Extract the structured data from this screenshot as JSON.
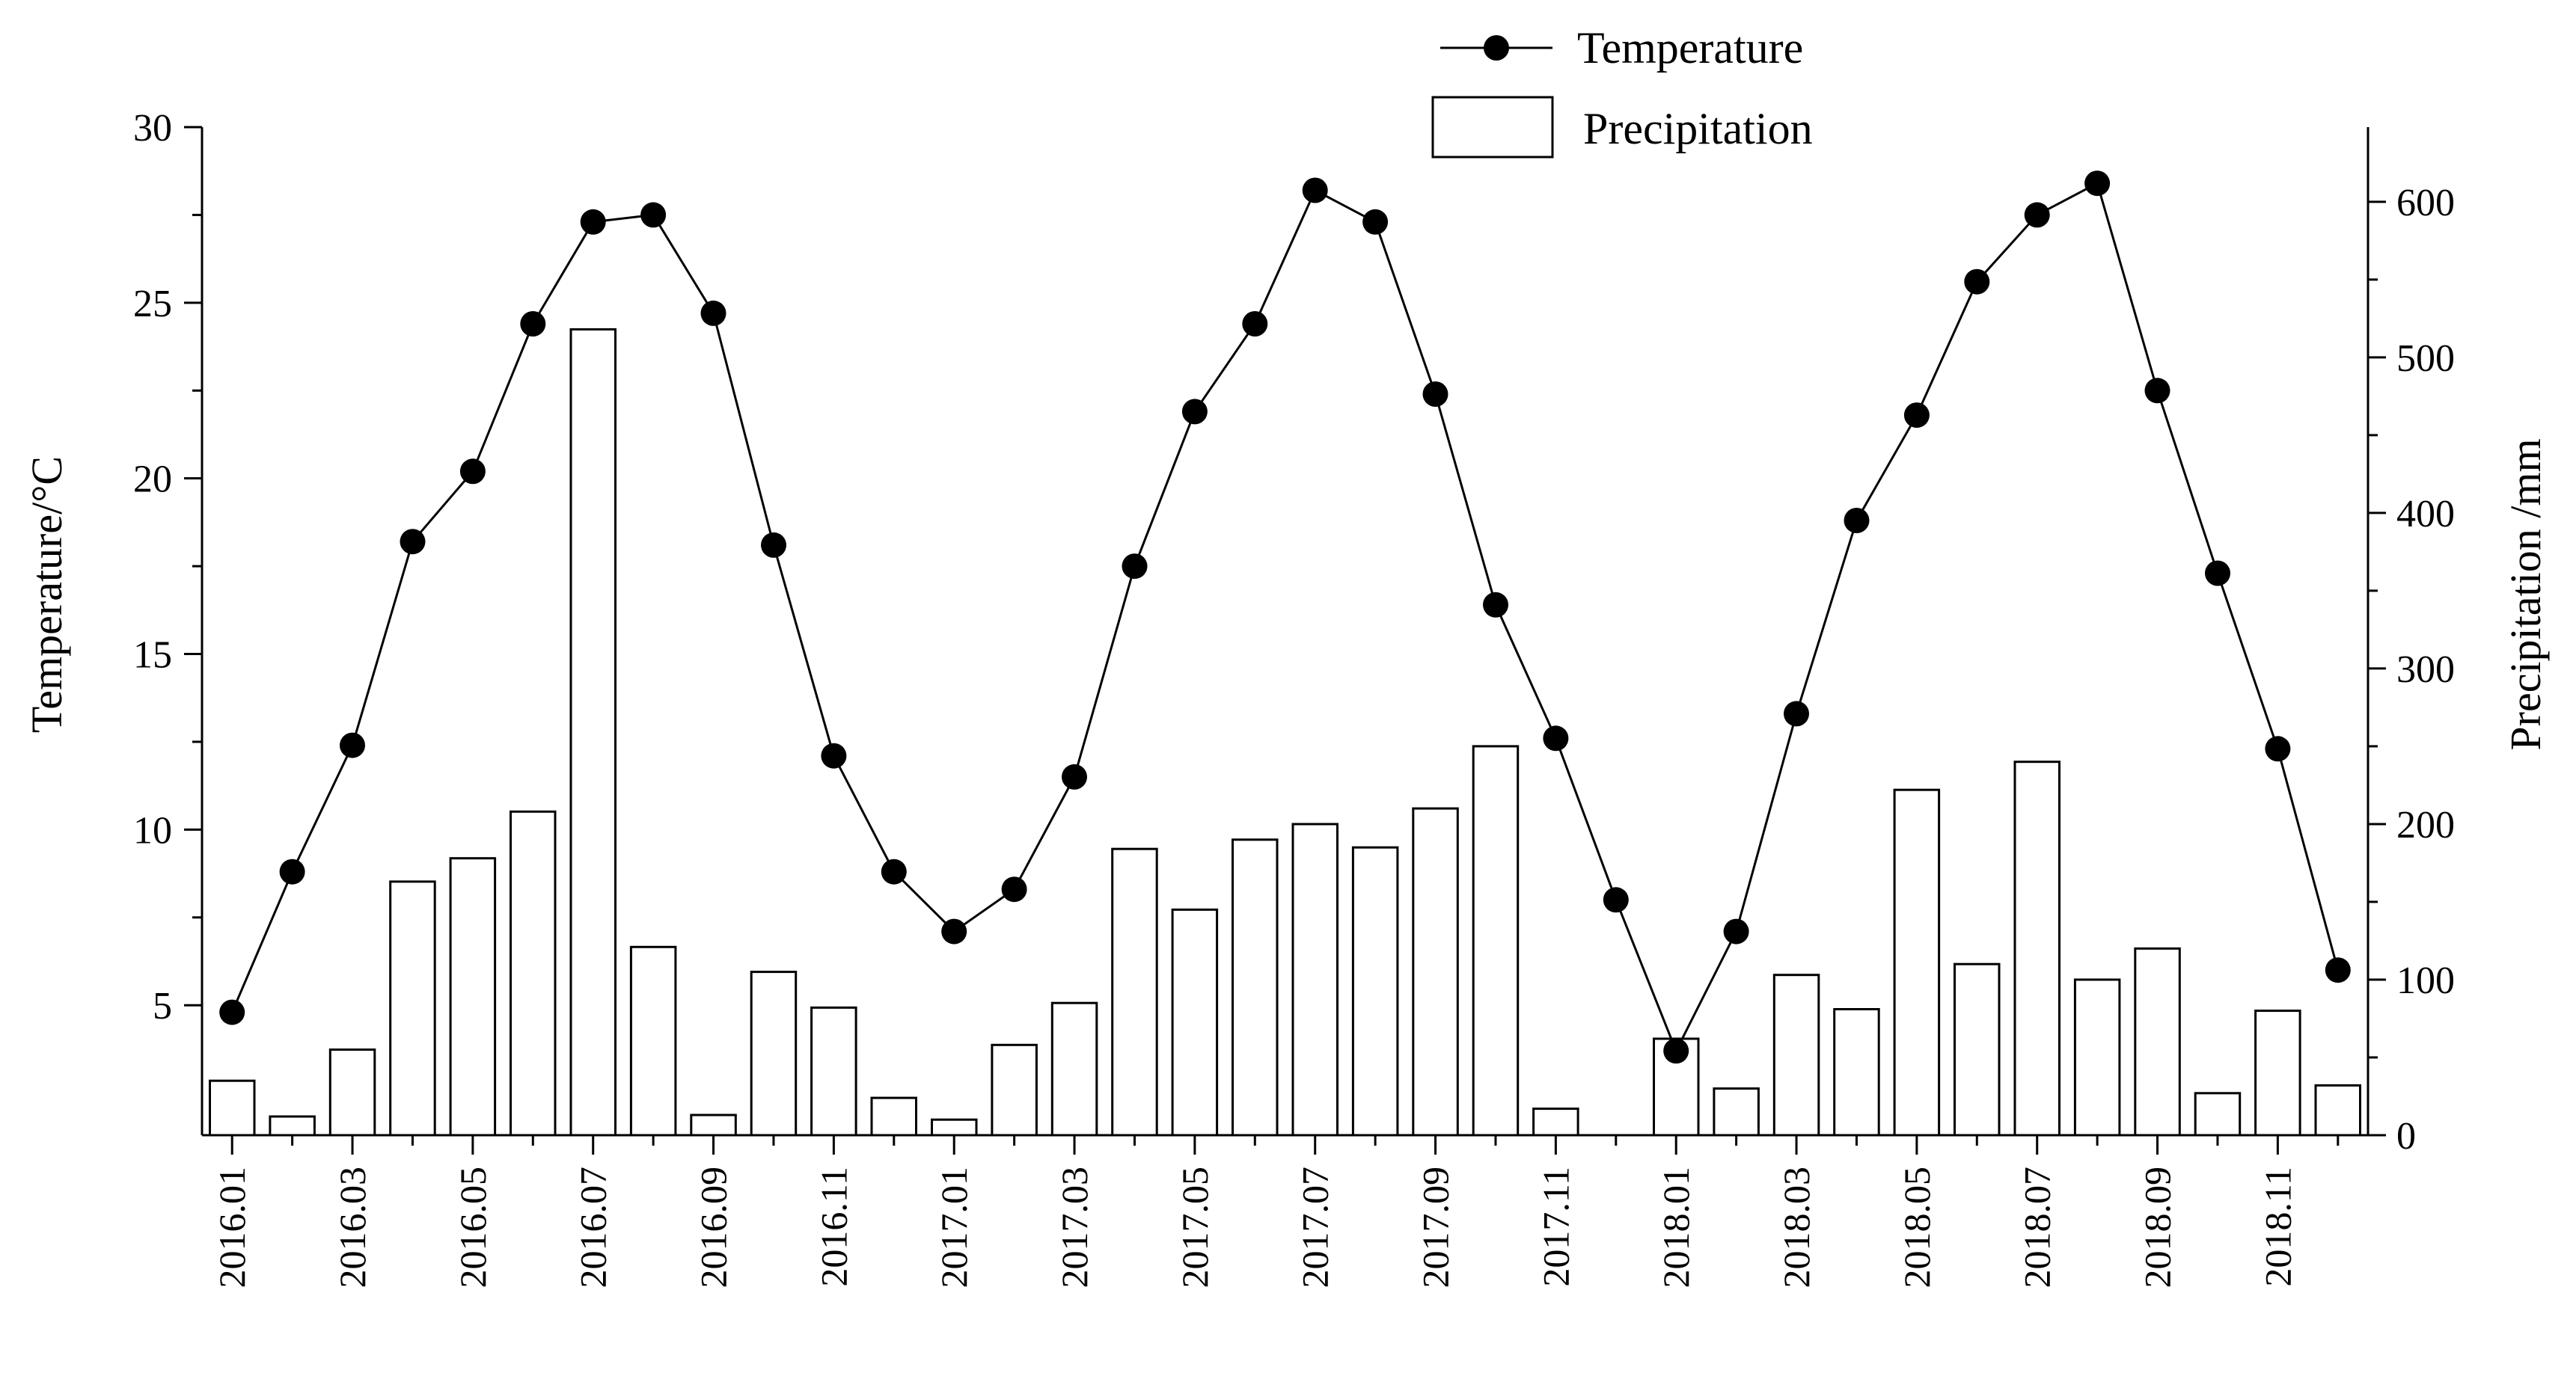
{
  "chart_data": {
    "type": "bar+line",
    "x": [
      "2016.01",
      "2016.02",
      "2016.03",
      "2016.04",
      "2016.05",
      "2016.06",
      "2016.07",
      "2016.08",
      "2016.09",
      "2016.10",
      "2016.11",
      "2016.12",
      "2017.01",
      "2017.02",
      "2017.03",
      "2017.04",
      "2017.05",
      "2017.06",
      "2017.07",
      "2017.08",
      "2017.09",
      "2017.10",
      "2017.11",
      "2017.12",
      "2018.01",
      "2018.02",
      "2018.03",
      "2018.04",
      "2018.05",
      "2018.06",
      "2018.07",
      "2018.08",
      "2018.09",
      "2018.10",
      "2018.11",
      "2018.12"
    ],
    "x_tick_labels": [
      "2016.01",
      "2016.03",
      "2016.05",
      "2016.07",
      "2016.09",
      "2016.11",
      "2017.01",
      "2017.03",
      "2017.05",
      "2017.07",
      "2017.09",
      "2017.11",
      "2018.01",
      "2018.03",
      "2018.05",
      "2018.07",
      "2018.09",
      "2018.11"
    ],
    "series": [
      {
        "name": "Temperature",
        "kind": "line-with-markers",
        "axis": "left",
        "values": [
          4.8,
          8.8,
          12.4,
          18.2,
          20.2,
          24.4,
          27.3,
          27.5,
          24.7,
          18.1,
          12.1,
          8.8,
          7.1,
          8.3,
          11.5,
          17.5,
          21.9,
          24.4,
          28.2,
          27.3,
          22.4,
          16.4,
          12.6,
          8.0,
          3.7,
          7.1,
          13.3,
          18.8,
          21.8,
          25.6,
          27.5,
          28.4,
          22.5,
          17.3,
          12.3,
          6.0
        ]
      },
      {
        "name": "Precipitation",
        "kind": "bar",
        "axis": "right",
        "values": [
          35,
          12,
          55,
          163,
          178,
          208,
          518,
          121,
          13,
          105,
          82,
          24,
          10,
          58,
          85,
          184,
          145,
          190,
          200,
          185,
          210,
          250,
          17,
          0,
          62,
          30,
          103,
          81,
          222,
          110,
          240,
          100,
          120,
          27,
          80,
          32
        ]
      }
    ],
    "y_left": {
      "label": "Temperature/°C",
      "ticks": [
        5,
        10,
        15,
        20,
        25,
        30
      ],
      "range": [
        1.3,
        30
      ]
    },
    "y_right": {
      "label": "Precipitation /mm",
      "ticks": [
        0,
        100,
        200,
        300,
        400,
        500,
        600
      ],
      "range": [
        0,
        648
      ]
    },
    "legend": {
      "position": "top-center",
      "entries": [
        "Temperature",
        "Precipitation"
      ]
    },
    "grid": false
  }
}
